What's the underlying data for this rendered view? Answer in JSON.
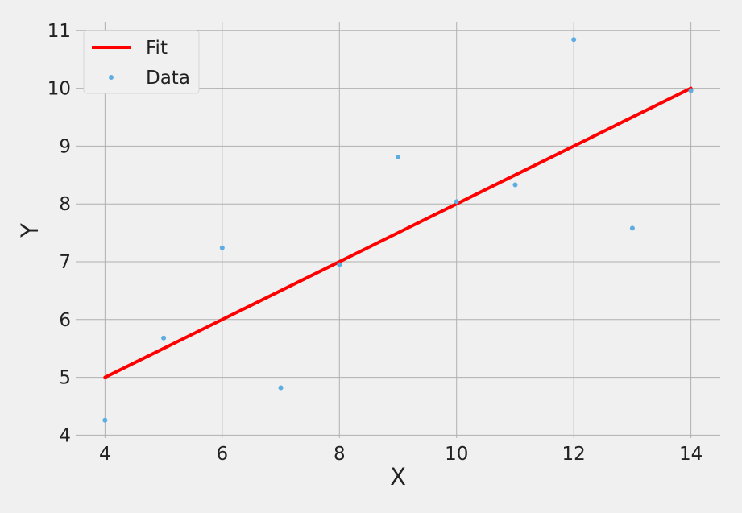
{
  "chart_data": {
    "type": "scatter",
    "title": "",
    "xlabel": "X",
    "ylabel": "Y",
    "xlim": [
      3.5,
      14.5
    ],
    "ylim": [
      3.95,
      11.15
    ],
    "xticks": [
      4,
      6,
      8,
      10,
      12,
      14
    ],
    "yticks": [
      4,
      5,
      6,
      7,
      8,
      9,
      10,
      11
    ],
    "grid": true,
    "legend_position": "top-left",
    "series": [
      {
        "name": "Fit",
        "kind": "line",
        "color": "#ff0000",
        "x": [
          4,
          14
        ],
        "y": [
          5.0,
          10.0
        ]
      },
      {
        "name": "Data",
        "kind": "scatter",
        "color": "#5dade2",
        "x": [
          4,
          5,
          6,
          7,
          8,
          9,
          10,
          11,
          12,
          13,
          14
        ],
        "y": [
          4.26,
          5.68,
          7.24,
          4.82,
          6.95,
          8.81,
          8.04,
          8.33,
          10.84,
          7.58,
          9.96
        ]
      }
    ]
  }
}
